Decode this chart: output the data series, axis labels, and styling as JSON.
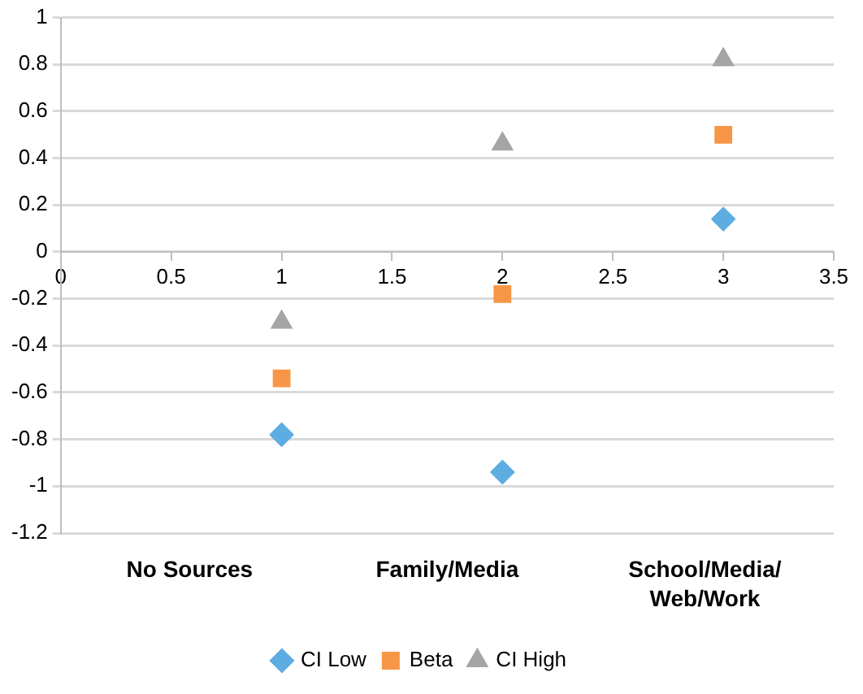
{
  "chart_data": {
    "type": "scatter",
    "x": [
      1,
      2,
      3
    ],
    "series": [
      {
        "name": "CI Low",
        "color": "#5dade2",
        "marker": "diamond",
        "values": [
          -0.78,
          -0.94,
          0.14
        ]
      },
      {
        "name": "Beta",
        "color": "#f79646",
        "marker": "square",
        "values": [
          -0.54,
          -0.18,
          0.5
        ]
      },
      {
        "name": "CI High",
        "color": "#a5a5a5",
        "marker": "triangle",
        "values": [
          -0.3,
          0.46,
          0.82
        ]
      }
    ],
    "xlim": [
      0,
      3.5
    ],
    "xticks": [
      0,
      0.5,
      1,
      1.5,
      2,
      2.5,
      3,
      3.5
    ],
    "ylim": [
      -1.2,
      1
    ],
    "yticks": [
      -1.2,
      -1,
      -0.8,
      -0.6,
      -0.4,
      -0.2,
      0,
      0.2,
      0.4,
      0.6,
      0.8,
      1
    ],
    "grid": "y",
    "legend": "bottom",
    "annotations": [
      "No Sources",
      "Family/Media",
      "School/Media/Web/Work"
    ]
  }
}
